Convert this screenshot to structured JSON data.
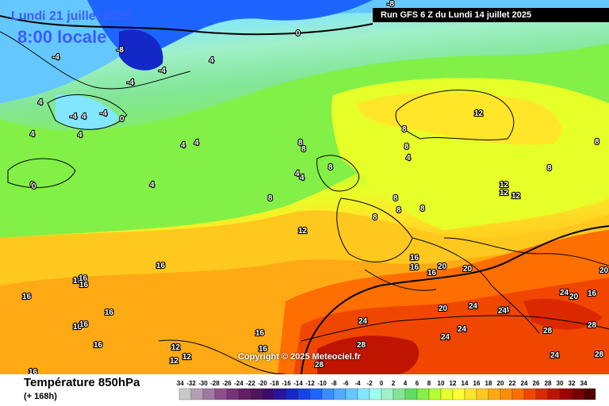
{
  "header": {
    "valid_date": "Lundi 21 juillet 2025",
    "valid_time": "8:00 locale",
    "run_info": "Run GFS 6 Z du Lundi 14 juillet 2025"
  },
  "copyright": "Copyright © 2025 Meteociel.fr",
  "footer": {
    "title": "Température 850hPa",
    "lead_time": "(+ 168h)"
  },
  "legend": {
    "values": [
      "-34",
      "-32",
      "-30",
      "-28",
      "-26",
      "-24",
      "-22",
      "-20",
      "-18",
      "-16",
      "-14",
      "-12",
      "-10",
      "-8",
      "-6",
      "-4",
      "-2",
      "0",
      "2",
      "4",
      "6",
      "8",
      "10",
      "12",
      "14",
      "16",
      "18",
      "20",
      "22",
      "24",
      "26",
      "28",
      "30",
      "32",
      "34"
    ],
    "colors": [
      "#c8c8c8",
      "#b4a0b4",
      "#a078a0",
      "#8c508c",
      "#783278",
      "#641e64",
      "#50145a",
      "#3c0a6e",
      "#2814a0",
      "#1428c8",
      "#1446e6",
      "#1e64ff",
      "#3c8cff",
      "#50aaff",
      "#64c8ff",
      "#82e6ff",
      "#a0fff0",
      "#a0f0c8",
      "#82e696",
      "#64dc64",
      "#82f046",
      "#b4ff32",
      "#e6ff28",
      "#ffff32",
      "#ffe628",
      "#ffc81e",
      "#ffaa14",
      "#ff8c0a",
      "#ff6e00",
      "#f04600",
      "#dc2800",
      "#be1400",
      "#a00000",
      "#780000",
      "#500000"
    ]
  },
  "contour_labels": [
    {
      "text": "-8"
    },
    {
      "text": "0"
    },
    {
      "text": "-8"
    },
    {
      "text": "-4"
    },
    {
      "text": "-4"
    },
    {
      "text": "-4"
    },
    {
      "text": "4"
    },
    {
      "text": "4"
    },
    {
      "text": "-4"
    },
    {
      "text": "4"
    },
    {
      "text": "-4"
    },
    {
      "text": "0"
    },
    {
      "text": "0"
    },
    {
      "text": "4"
    },
    {
      "text": "4"
    },
    {
      "text": "4"
    },
    {
      "text": "0"
    },
    {
      "text": "4"
    },
    {
      "text": "4"
    },
    {
      "text": "4"
    },
    {
      "text": "8"
    },
    {
      "text": "4"
    },
    {
      "text": "4"
    },
    {
      "text": "8"
    },
    {
      "text": "8"
    },
    {
      "text": "12"
    },
    {
      "text": "8"
    },
    {
      "text": "12"
    },
    {
      "text": "8"
    },
    {
      "text": "8"
    },
    {
      "text": "8"
    },
    {
      "text": "8"
    },
    {
      "text": "8"
    },
    {
      "text": "8"
    },
    {
      "text": "12"
    },
    {
      "text": "12"
    },
    {
      "text": "12"
    },
    {
      "text": "12"
    },
    {
      "text": "8"
    },
    {
      "text": "8"
    },
    {
      "text": "16"
    },
    {
      "text": "16"
    },
    {
      "text": "16"
    },
    {
      "text": "16"
    },
    {
      "text": "16"
    },
    {
      "text": "16"
    },
    {
      "text": "16"
    },
    {
      "text": "16"
    },
    {
      "text": "16"
    },
    {
      "text": "16"
    },
    {
      "text": "16"
    },
    {
      "text": "16"
    },
    {
      "text": "16"
    },
    {
      "text": "16"
    },
    {
      "text": "20"
    },
    {
      "text": "20"
    },
    {
      "text": "24"
    },
    {
      "text": "24"
    },
    {
      "text": "24"
    },
    {
      "text": "20"
    },
    {
      "text": "24"
    },
    {
      "text": "24"
    },
    {
      "text": "20"
    },
    {
      "text": "16"
    },
    {
      "text": "20"
    },
    {
      "text": "24"
    },
    {
      "text": "28"
    },
    {
      "text": "28"
    },
    {
      "text": "24"
    },
    {
      "text": "28"
    },
    {
      "text": "28"
    },
    {
      "text": "24"
    },
    {
      "text": "28"
    },
    {
      "text": "12"
    },
    {
      "text": "12"
    },
    {
      "text": "12"
    },
    {
      "text": "16"
    }
  ]
}
